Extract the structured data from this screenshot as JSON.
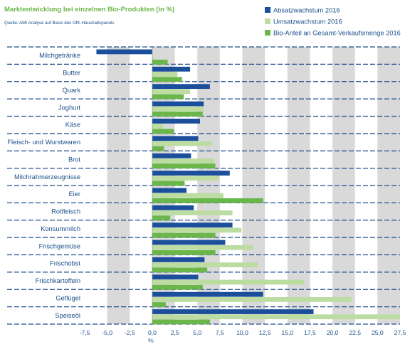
{
  "colors": {
    "absatz": "#1b4f9c",
    "umsatz": "#bcdca2",
    "bioanteil": "#6ab64a",
    "title": "#6ab64a",
    "text": "#1a4f8b",
    "band": "#d9d9d9",
    "divider": "#1f4e8c"
  },
  "chart_data": {
    "type": "bar",
    "orientation": "horizontal",
    "title": "Marktentwicklung bei einzelnen Bio-Produkten (in %)",
    "subtitle": "Quelle: AMI Analyse auf Basis des GfK-Haushaltspanels",
    "xlabel": "%",
    "xlim": [
      -7.5,
      27.5
    ],
    "xticks": [
      "-7,5",
      "-5,0",
      "-2,5",
      "0,0",
      "2,5",
      "5,0",
      "7,5",
      "10,0",
      "12,5",
      "15,0",
      "17,5",
      "20,0",
      "22,5",
      "25,0",
      "27,5"
    ],
    "tick_values": [
      -7.5,
      -5,
      -2.5,
      0,
      2.5,
      5,
      7.5,
      10,
      12.5,
      15,
      17.5,
      20,
      22.5,
      25,
      27.5
    ],
    "legend_position": "top-right",
    "grid": "alternating vertical bands",
    "categories": [
      "Milchgetränke",
      "Butter",
      "Quark",
      "Joghurt",
      "Käse",
      "Fleisch- und Wurstwaren",
      "Brot",
      "Milchrahmerzeugnisse",
      "Eier",
      "Rotfleisch",
      "Konsummilch",
      "Frischgemüse",
      "Frischobst",
      "Frischkartoffeln",
      "Geflügel",
      "Speiseöl"
    ],
    "series": [
      {
        "name": "Absatzwachstum 2016",
        "color_key": "absatz",
        "values": [
          -6.2,
          4.2,
          6.4,
          5.7,
          5.3,
          5.1,
          4.3,
          8.6,
          3.8,
          4.6,
          8.9,
          8.1,
          5.8,
          5.1,
          12.3,
          17.9
        ]
      },
      {
        "name": "Umsatzwachstum 2016",
        "color_key": "umsatz",
        "values": [
          0.1,
          2.8,
          4.2,
          5.7,
          1.2,
          6.6,
          6.9,
          7.4,
          7.9,
          8.9,
          9.9,
          11.2,
          11.7,
          16.9,
          22.1,
          27.5
        ]
      },
      {
        "name": "Bio-Anteil an Gesamt-Verkaufsmenge 2016",
        "color_key": "bioanteil",
        "values": [
          1.7,
          3.3,
          3.5,
          5.6,
          2.4,
          1.3,
          7.0,
          3.6,
          12.3,
          2.0,
          7.0,
          7.0,
          6.1,
          5.6,
          1.5,
          6.4
        ]
      }
    ]
  }
}
